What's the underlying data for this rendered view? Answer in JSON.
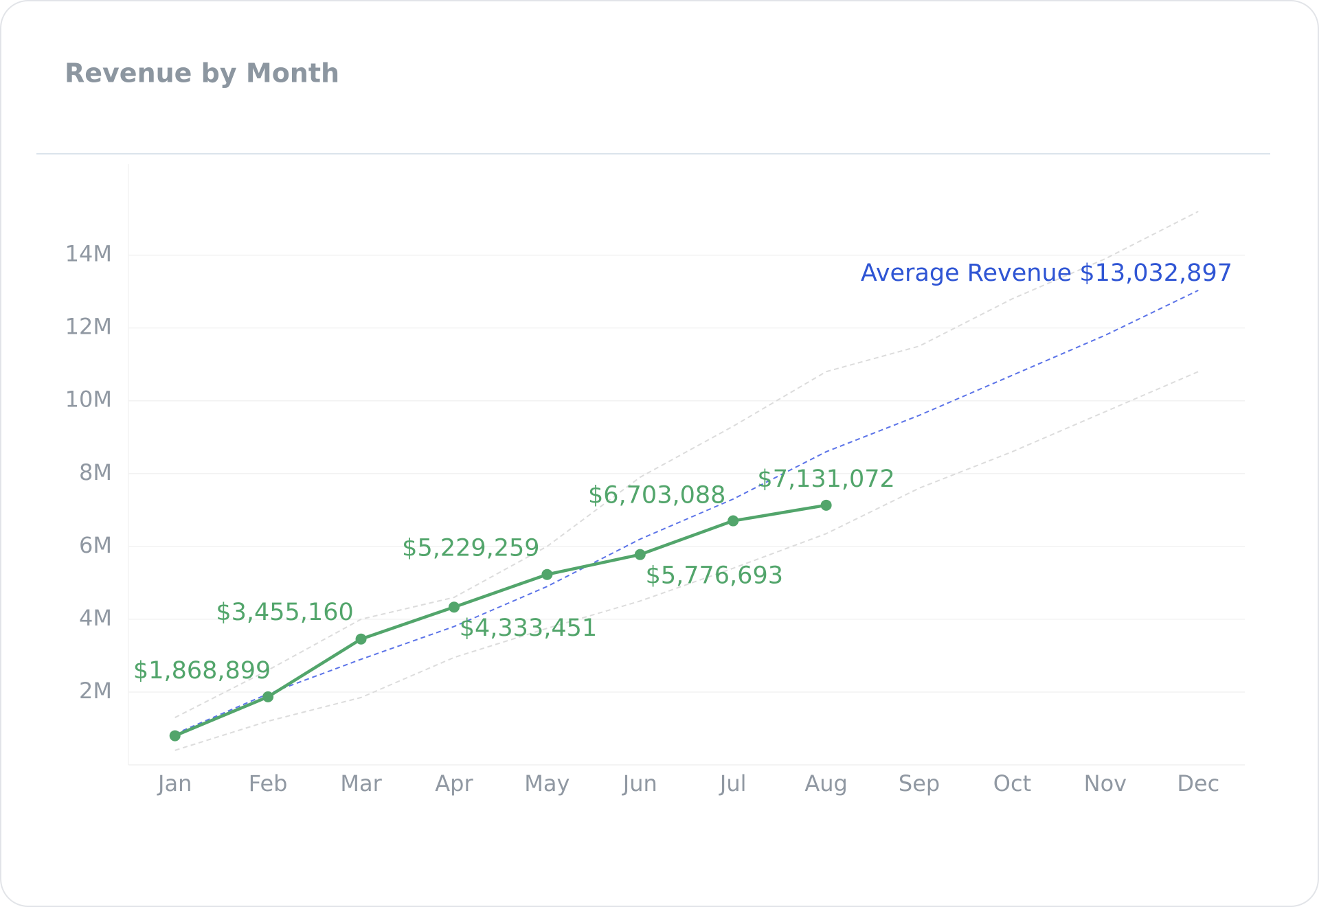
{
  "chart_data": {
    "type": "line",
    "title": "Revenue by Month",
    "categories": [
      "Jan",
      "Feb",
      "Mar",
      "Apr",
      "May",
      "Jun",
      "Jul",
      "Aug",
      "Sep",
      "Oct",
      "Nov",
      "Dec"
    ],
    "series": [
      {
        "color": "#dcdcdc",
        "style": "dashed",
        "values": [
          1300000,
          2600000,
          4000000,
          4600000,
          6000000,
          7900000,
          9300000,
          10800000,
          11500000,
          12800000,
          13900000,
          15200000
        ]
      },
      {
        "color": "#dcdcdc",
        "style": "dashed",
        "values": [
          400000,
          1200000,
          1850000,
          2950000,
          3750000,
          4500000,
          5400000,
          6350000,
          7600000,
          8600000,
          9700000,
          10800000
        ]
      },
      {
        "color": "#5b73e8",
        "style": "dashed",
        "values": [
          850000,
          1950000,
          2900000,
          3800000,
          4900000,
          6200000,
          7300000,
          8600000,
          9600000,
          10700000,
          11800000,
          13032897
        ]
      },
      {
        "color": "#52a56b",
        "style": "solid",
        "markers": true,
        "values": [
          800000,
          1868899,
          3455160,
          4333451,
          5229259,
          5776693,
          6703088,
          7131072,
          null,
          null,
          null,
          null
        ],
        "value_labels": [
          null,
          "$1,868,899",
          "$3,455,160",
          "$4,333,451",
          "$5,229,259",
          "$5,776,693",
          "$6,703,088",
          "$7,131,072",
          null,
          null,
          null,
          null
        ]
      }
    ],
    "annotation": {
      "text": "Average Revenue $13,032,897",
      "color": "#2f55d4"
    },
    "ylim": [
      0,
      16500000
    ],
    "yticks": [
      {
        "value": 2000000,
        "label": "2M"
      },
      {
        "value": 4000000,
        "label": "4M"
      },
      {
        "value": 6000000,
        "label": "6M"
      },
      {
        "value": 8000000,
        "label": "8M"
      },
      {
        "value": 10000000,
        "label": "10M"
      },
      {
        "value": 12000000,
        "label": "12M"
      },
      {
        "value": 14000000,
        "label": "14M"
      }
    ],
    "grid": true
  }
}
